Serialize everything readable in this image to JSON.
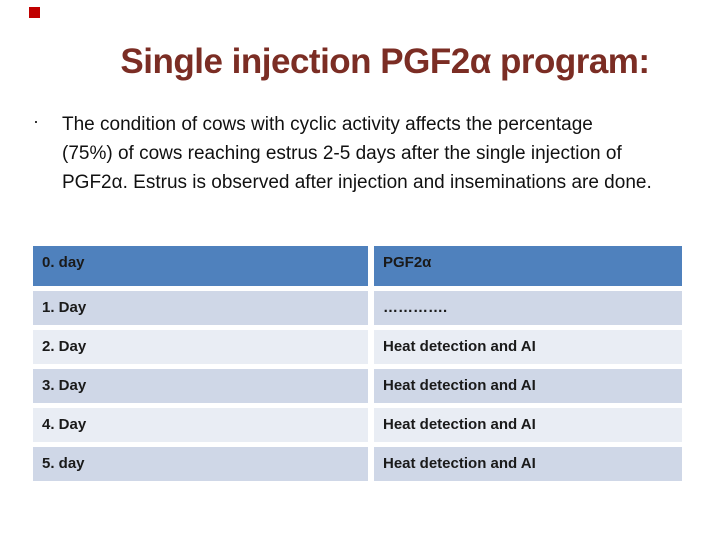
{
  "slide": {
    "title": "Single injection PGF2α program:",
    "title_color": "#7b2d24",
    "background": "#ffffff",
    "corner_marker_color": "#c00000"
  },
  "bullet": {
    "marker": "·",
    "lines": [
      "The condition of cows with cyclic activity affects the percentage",
      "(75%) of cows reaching estrus 2-5 days after the single injection of",
      "PGF2α. Estrus is observed after injection and inseminations are done."
    ]
  },
  "table": {
    "colors": {
      "header_bg": "#4f81bd",
      "band_a": "#cfd7e7",
      "band_b": "#e9edf4",
      "text": "#1a1a1a"
    },
    "header": {
      "col1": "0. day",
      "col2": "PGF2α"
    },
    "rows": [
      {
        "col1": "1. Day",
        "col2": "…………."
      },
      {
        "col1": "2. Day",
        "col2": "Heat detection and AI"
      },
      {
        "col1": "3. Day",
        "col2": "Heat detection and AI"
      },
      {
        "col1": "4. Day",
        "col2": "Heat detection and AI"
      },
      {
        "col1": "5. day",
        "col2": "Heat detection and AI"
      }
    ]
  }
}
